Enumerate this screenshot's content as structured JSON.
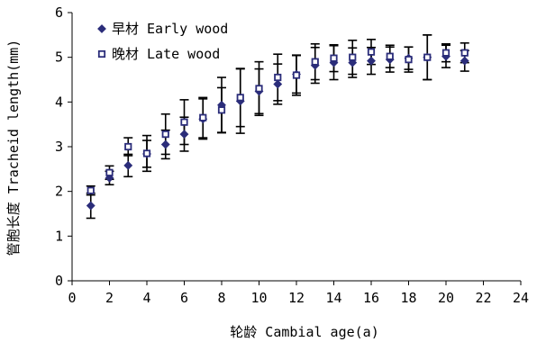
{
  "chart_data": {
    "type": "scatter",
    "title": "",
    "xlabel": "轮龄 Cambial age(a)",
    "ylabel": "管胞长度 Tracheid length(mm)",
    "xlim": [
      0,
      24
    ],
    "ylim": [
      0,
      6
    ],
    "x_ticks": [
      "0",
      "2",
      "4",
      "6",
      "8",
      "10",
      "12",
      "14",
      "16",
      "18",
      "20",
      "22",
      "24"
    ],
    "y_ticks": [
      "0",
      "1",
      "2",
      "3",
      "4",
      "5",
      "6"
    ],
    "grid": false,
    "legend_position": "top-left",
    "series": [
      {
        "name": "早材 Early wood",
        "marker": "diamond",
        "color": "#2b2d7a",
        "points": [
          {
            "x": 1,
            "y": 1.68,
            "err": 0.28
          },
          {
            "x": 2,
            "y": 2.3,
            "err": 0.15
          },
          {
            "x": 3,
            "y": 2.58,
            "err": 0.25
          },
          {
            "x": 4,
            "y": 2.84,
            "err": 0.3
          },
          {
            "x": 5,
            "y": 3.05,
            "err": 0.32
          },
          {
            "x": 6,
            "y": 3.28,
            "err": 0.38
          },
          {
            "x": 7,
            "y": 3.62,
            "err": 0.45
          },
          {
            "x": 8,
            "y": 3.93,
            "err": 0.62
          },
          {
            "x": 9,
            "y": 4.02,
            "err": 0.72
          },
          {
            "x": 10,
            "y": 4.24,
            "err": 0.5
          },
          {
            "x": 11,
            "y": 4.4,
            "err": 0.45
          },
          {
            "x": 12,
            "y": 4.62,
            "err": 0.42
          },
          {
            "x": 13,
            "y": 4.82,
            "err": 0.4
          },
          {
            "x": 14,
            "y": 4.88,
            "err": 0.38
          },
          {
            "x": 15,
            "y": 4.88,
            "err": 0.33
          },
          {
            "x": 16,
            "y": 4.92,
            "err": 0.3
          },
          {
            "x": 17,
            "y": 4.95,
            "err": 0.28
          },
          {
            "x": 18,
            "y": 4.98,
            "err": 0.25
          },
          {
            "x": 19,
            "y": 5.0,
            "err": 0.5
          },
          {
            "x": 20,
            "y": 5.02,
            "err": 0.25
          },
          {
            "x": 21,
            "y": 4.92,
            "err": 0.23
          }
        ]
      },
      {
        "name": "晚材 Late wood",
        "marker": "square",
        "color": "#2b2d7a",
        "points": [
          {
            "x": 1,
            "y": 2.02,
            "err": 0.1
          },
          {
            "x": 2,
            "y": 2.42,
            "err": 0.15
          },
          {
            "x": 3,
            "y": 3.0,
            "err": 0.2
          },
          {
            "x": 4,
            "y": 2.85,
            "err": 0.4
          },
          {
            "x": 5,
            "y": 3.28,
            "err": 0.45
          },
          {
            "x": 6,
            "y": 3.55,
            "err": 0.5
          },
          {
            "x": 7,
            "y": 3.65,
            "err": 0.45
          },
          {
            "x": 8,
            "y": 3.82,
            "err": 0.5
          },
          {
            "x": 9,
            "y": 4.1,
            "err": 0.65
          },
          {
            "x": 10,
            "y": 4.3,
            "err": 0.6
          },
          {
            "x": 11,
            "y": 4.55,
            "err": 0.52
          },
          {
            "x": 12,
            "y": 4.6,
            "err": 0.45
          },
          {
            "x": 13,
            "y": 4.9,
            "err": 0.4
          },
          {
            "x": 14,
            "y": 4.98,
            "err": 0.3
          },
          {
            "x": 15,
            "y": 5.0,
            "err": 0.38
          },
          {
            "x": 16,
            "y": 5.12,
            "err": 0.28
          },
          {
            "x": 17,
            "y": 5.02,
            "err": 0.25
          },
          {
            "x": 18,
            "y": 4.95,
            "err": 0.28
          },
          {
            "x": 19,
            "y": 5.0,
            "err": 0.5
          },
          {
            "x": 20,
            "y": 5.1,
            "err": 0.2
          },
          {
            "x": 21,
            "y": 5.1,
            "err": 0.22
          }
        ]
      }
    ]
  }
}
